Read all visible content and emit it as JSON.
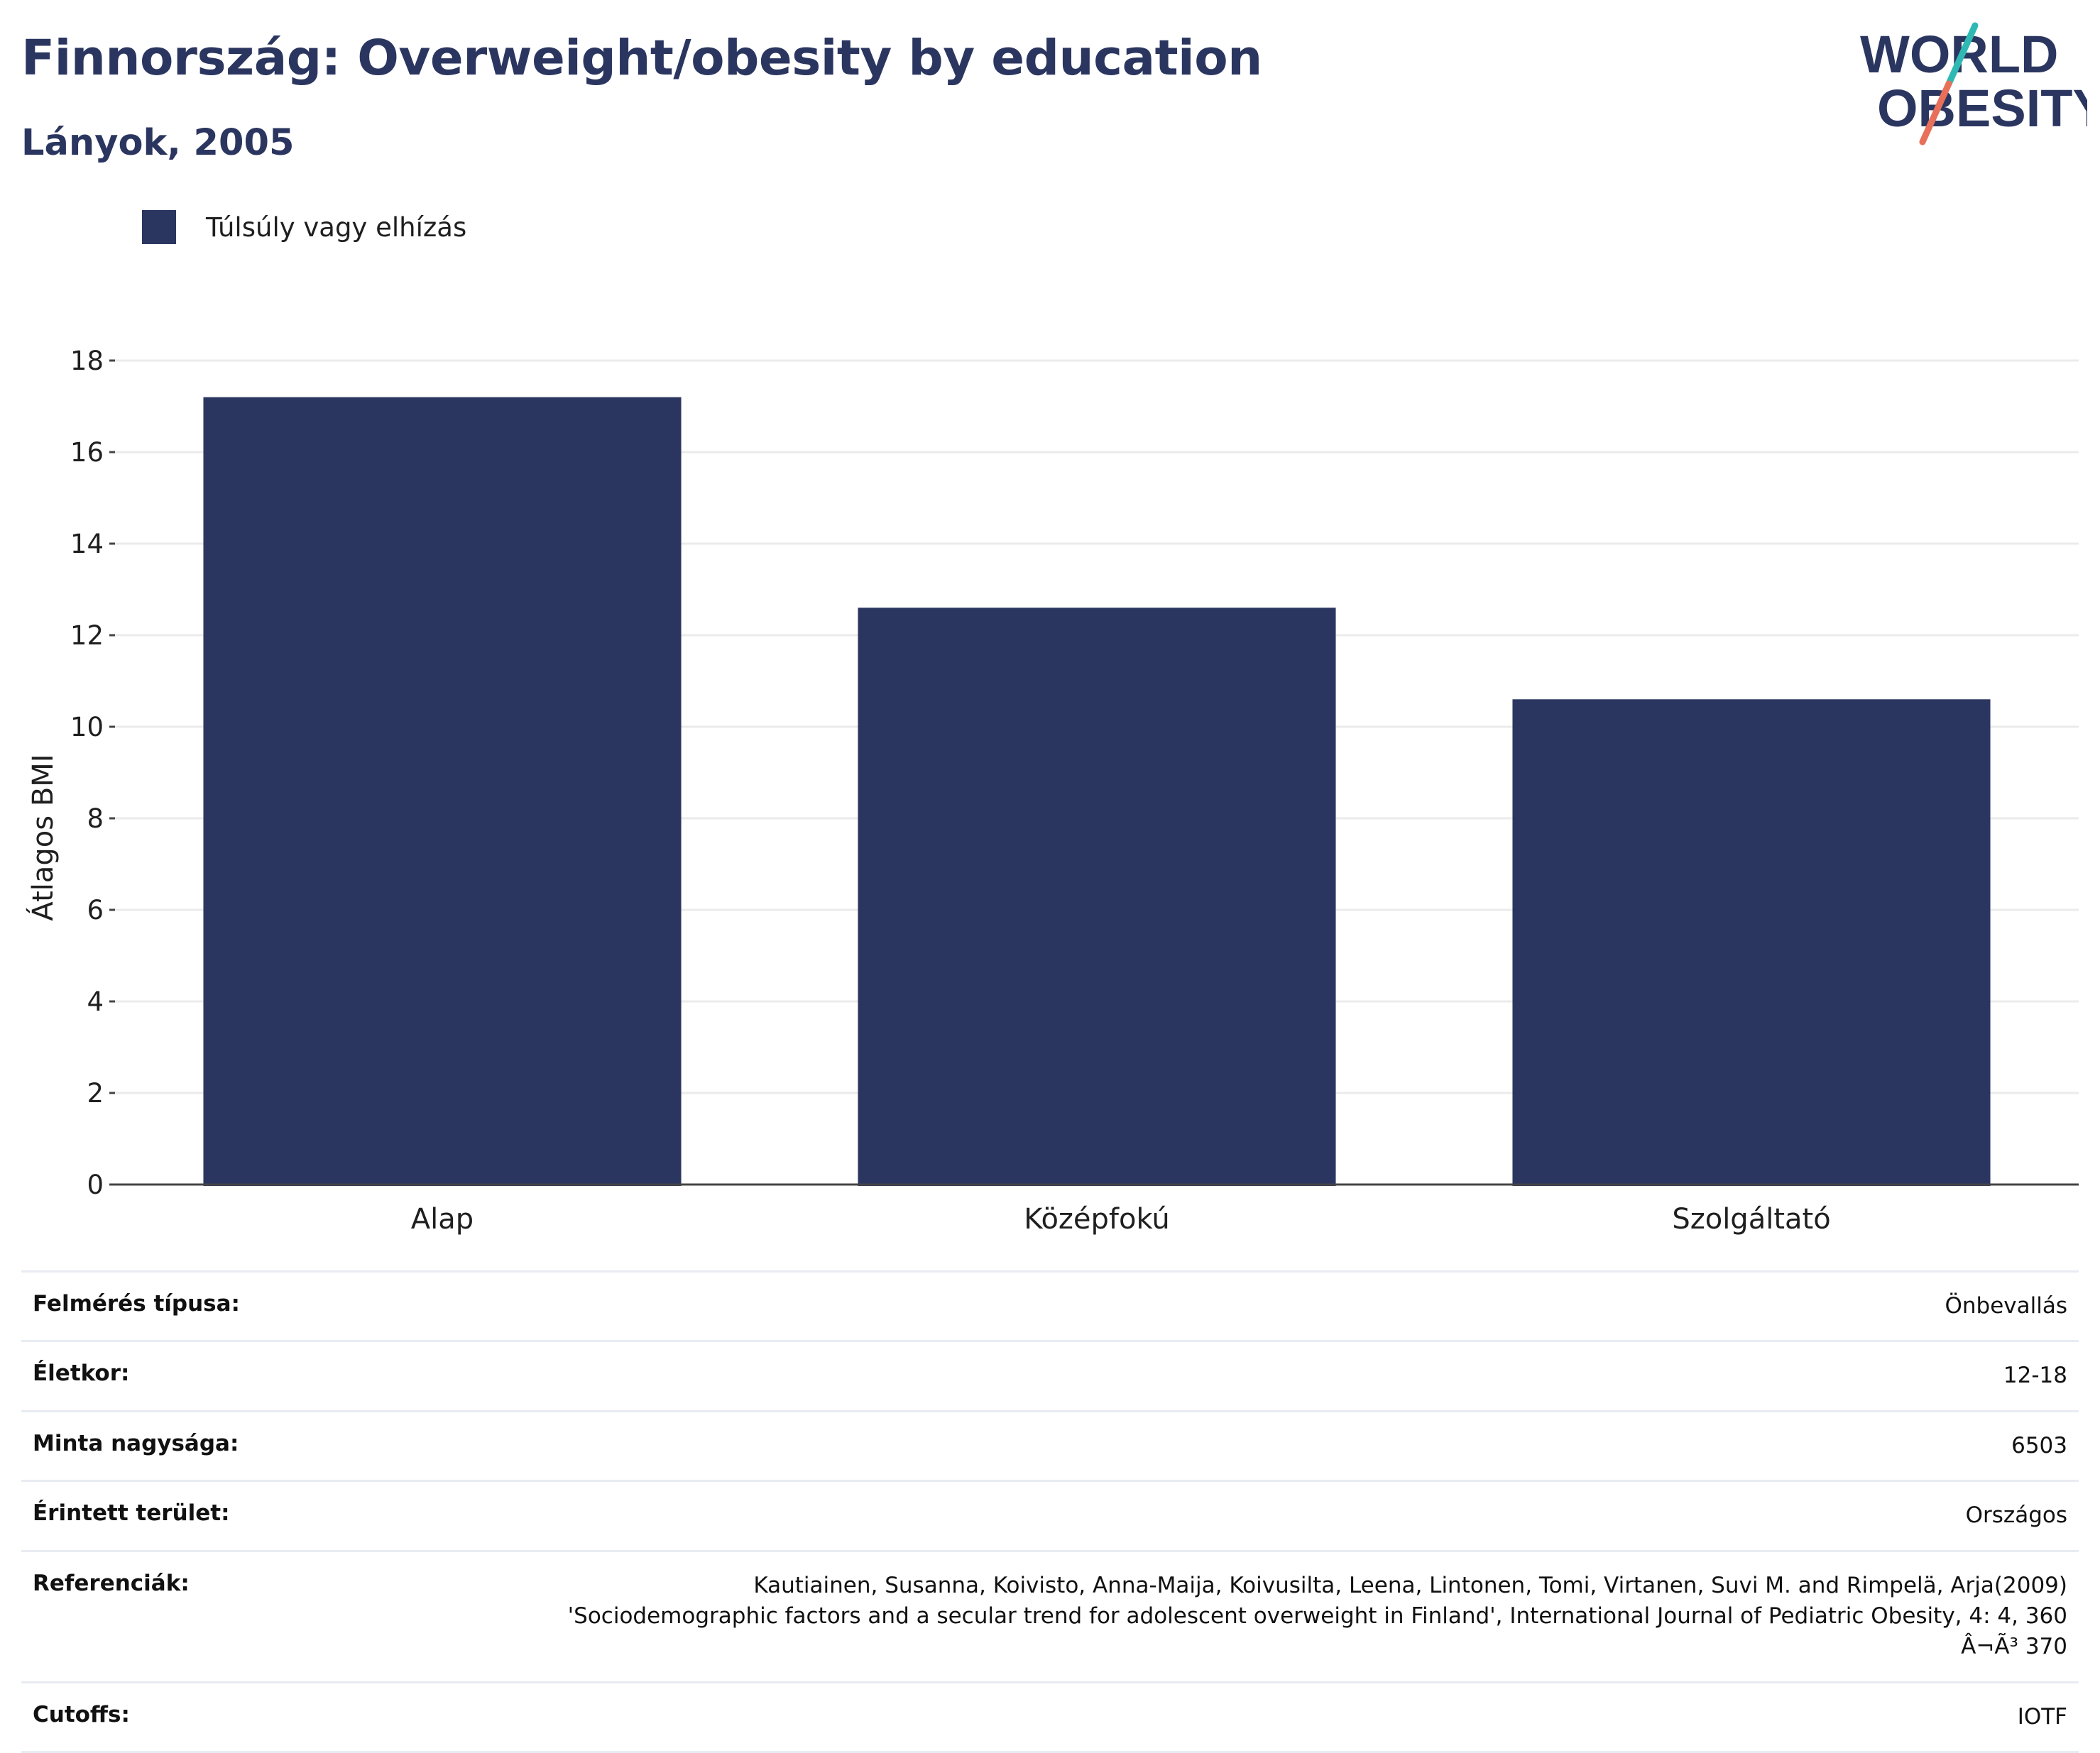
{
  "header": {
    "title": "Finnország: Overweight/obesity by education",
    "subtitle": "Lányok, 2005"
  },
  "logo": {
    "line1": "WORLD",
    "line2": "OBESITY"
  },
  "colors": {
    "bar": "#2b3660",
    "accent_teal": "#2fb9b4",
    "accent_red": "#e8705a"
  },
  "legend": {
    "label": "Túlsúly vagy elhízás"
  },
  "chart_data": {
    "type": "bar",
    "categories": [
      "Alap",
      "Középfokú",
      "Szolgáltató"
    ],
    "series": [
      {
        "name": "Túlsúly vagy elhízás",
        "values": [
          17.2,
          12.6,
          10.6
        ]
      }
    ],
    "title": "Finnország: Overweight/obesity by education",
    "subtitle": "Lányok, 2005",
    "xlabel": "",
    "ylabel": "Átlagos BMI",
    "ylim": [
      0,
      18
    ],
    "yticks": [
      0,
      2,
      4,
      6,
      8,
      10,
      12,
      14,
      16,
      18
    ],
    "grid": true,
    "legend_position": "top-left"
  },
  "meta": [
    {
      "key": "Felmérés típusa:",
      "value": "Önbevallás"
    },
    {
      "key": "Életkor:",
      "value": "12-18"
    },
    {
      "key": "Minta nagysága:",
      "value": "6503"
    },
    {
      "key": "Érintett terület:",
      "value": "Országos"
    },
    {
      "key": "Referenciák:",
      "value": "Kautiainen, Susanna, Koivisto, Anna-Maija, Koivusilta, Leena, Lintonen, Tomi, Virtanen, Suvi M. and Rimpelä, Arja(2009)\n'Sociodemographic factors and a secular trend for adolescent overweight in Finland', International Journal of Pediatric Obesity, 4: 4, 360\nÂ¬Ã³ 370"
    },
    {
      "key": "Cutoffs:",
      "value": "IOTF"
    }
  ]
}
